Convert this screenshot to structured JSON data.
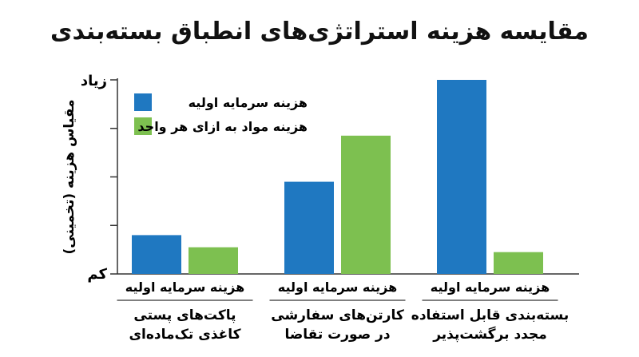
{
  "chart_data": {
    "type": "bar",
    "title": "مقایسه هزینه استراتژی‌های انطباق بسته‌بندی",
    "ylabel": "مقیاس هزینه (تخمینی)",
    "y_tick_labels": {
      "high": "زیاد",
      "low": "کم"
    },
    "ylim": [
      0,
      4
    ],
    "grid": false,
    "legend_position": "top-left",
    "categories": [
      {
        "sublabel": "هزینه سرمایه اولیه",
        "name_line1": "پاکت‌های پستی",
        "name_line2": "کاغذی تک‌ماده‌ای"
      },
      {
        "sublabel": "هزینه سرمایه اولیه",
        "name_line1": "کارتن‌های سفارشی",
        "name_line2": "در صورت تقاضا"
      },
      {
        "sublabel": "هزینه سرمایه اولیه",
        "name_line1": "بسته‌بندی قابل استفاده",
        "name_line2": "مجدد برگشت‌پذیر"
      }
    ],
    "series": [
      {
        "name": "هزینه سرمایه اولیه",
        "color": "#1f78c1",
        "values": [
          0.8,
          1.9,
          4.0
        ]
      },
      {
        "name": "هزینه مواد به ازای هر واحد",
        "color": "#7dc050",
        "values": [
          0.55,
          2.85,
          0.45
        ]
      }
    ]
  }
}
